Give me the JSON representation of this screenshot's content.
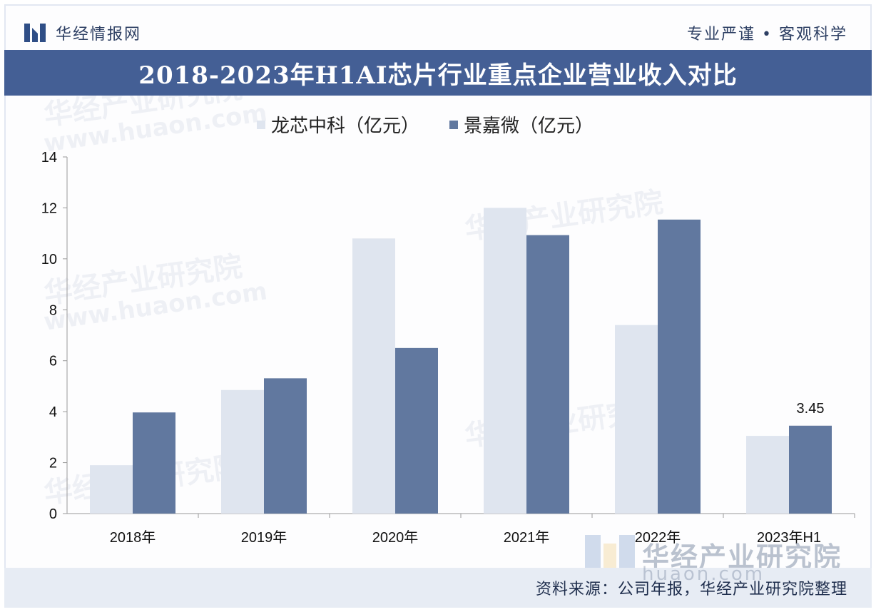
{
  "header": {
    "brand": "华经情报网",
    "slogan": "专业严谨 • 客观科学",
    "title": "2018-2023年H1AI芯片行业重点企业营业收入对比"
  },
  "watermark": {
    "text": "华经产业研究院",
    "url": "www.huaon.com",
    "corner_url": "huaon.com"
  },
  "footer": {
    "source": "资料来源：公司年报，华经产业研究院整理"
  },
  "colors": {
    "series1": "#dfe5ef",
    "series2": "#61789f",
    "title_band": "#445f95"
  },
  "chart_data": {
    "type": "bar",
    "title": "2018-2023年H1AI芯片行业重点企业营业收入对比",
    "categories": [
      "2018年",
      "2019年",
      "2020年",
      "2021年",
      "2022年",
      "2023年H1"
    ],
    "series": [
      {
        "name": "龙芯中科（亿元）",
        "values": [
          1.9,
          4.85,
          10.8,
          12.0,
          7.4,
          3.05
        ]
      },
      {
        "name": "景嘉微（亿元）",
        "values": [
          3.97,
          5.31,
          6.5,
          10.93,
          11.54,
          3.45
        ]
      }
    ],
    "data_labels": [
      {
        "series": 1,
        "index": 5,
        "text": "3.45"
      }
    ],
    "ylim": [
      0,
      14
    ],
    "yticks": [
      0,
      2,
      4,
      6,
      8,
      10,
      12,
      14
    ],
    "legend": "top",
    "grid": false
  }
}
